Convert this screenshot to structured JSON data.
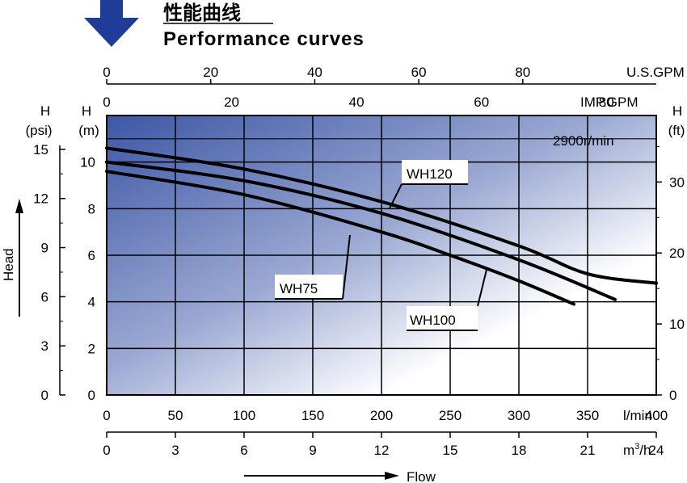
{
  "title_cn": "性能曲线",
  "title_en": "Performance curves",
  "chart_data": {
    "type": "line",
    "speed_label": "2900r/min",
    "x_axes": {
      "lpm": {
        "unit": "l/min",
        "ticks": [
          0,
          50,
          100,
          150,
          200,
          250,
          300,
          350,
          400
        ],
        "range": [
          0,
          400
        ]
      },
      "m3h": {
        "unit_base": "m",
        "unit_sup": "3",
        "unit_tail": "/h",
        "ticks": [
          0,
          3,
          6,
          9,
          12,
          15,
          18,
          21,
          24
        ]
      },
      "usgpm": {
        "unit": "U.S.GPM",
        "ticks": [
          0,
          20,
          40,
          60,
          80
        ]
      },
      "impgpm": {
        "unit": "IMP.GPM",
        "ticks": [
          0,
          20,
          40,
          60,
          80
        ]
      }
    },
    "y_axes": {
      "m": {
        "label_top": "H",
        "label_unit": "(m)",
        "ticks": [
          0,
          2,
          4,
          6,
          8,
          10
        ],
        "range": [
          0,
          12
        ]
      },
      "psi": {
        "label_top": "H",
        "label_unit": "(psi)",
        "ticks": [
          0,
          3,
          6,
          9,
          12,
          15
        ]
      },
      "ft": {
        "label_top": "H",
        "label_unit": "(ft)",
        "ticks": [
          0,
          10,
          20,
          30
        ]
      }
    },
    "xlabel": "Flow",
    "ylabel": "Head",
    "series": [
      {
        "name": "WH120",
        "x": [
          0,
          100,
          200,
          300,
          350,
          400
        ],
        "y": [
          10.6,
          9.7,
          8.3,
          6.4,
          5.2,
          4.8
        ]
      },
      {
        "name": "WH100",
        "x": [
          0,
          100,
          200,
          300,
          370
        ],
        "y": [
          10.0,
          9.2,
          7.8,
          5.8,
          4.1
        ]
      },
      {
        "name": "WH75",
        "x": [
          0,
          100,
          200,
          250,
          300,
          340
        ],
        "y": [
          9.6,
          8.6,
          7.0,
          6.0,
          4.9,
          3.9
        ]
      }
    ]
  }
}
